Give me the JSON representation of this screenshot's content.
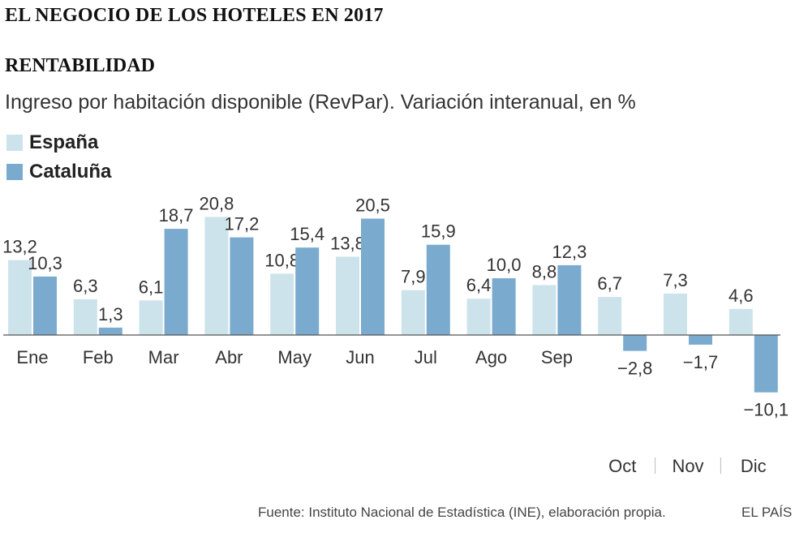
{
  "header": {
    "title": "EL NEGOCIO DE LOS HOTELES EN 2017",
    "section": "RENTABILIDAD",
    "subtitle": "Ingreso por habitación disponible (RevPar). Variación interanual, en %"
  },
  "colors": {
    "espana": "#cde3ec",
    "cataluna": "#7aabcf",
    "axis": "#555555"
  },
  "chart_data": {
    "type": "bar",
    "categories": [
      "Ene",
      "Feb",
      "Mar",
      "Abr",
      "May",
      "Jun",
      "Jul",
      "Ago",
      "Sep",
      "Oct",
      "Nov",
      "Dic"
    ],
    "series": [
      {
        "name": "España",
        "values": [
          13.2,
          6.3,
          6.1,
          20.8,
          10.8,
          13.8,
          7.9,
          6.4,
          8.8,
          6.7,
          7.3,
          4.6
        ],
        "labels": [
          "13,2",
          "6,3",
          "6,1",
          "20,8",
          "10,8",
          "13,8",
          "7,9",
          "6,4",
          "8,8",
          "6,7",
          "7,3",
          "4,6"
        ]
      },
      {
        "name": "Cataluña",
        "values": [
          10.3,
          1.3,
          18.7,
          17.2,
          15.4,
          20.5,
          15.9,
          10.0,
          12.3,
          -2.8,
          -1.7,
          -10.1
        ],
        "labels": [
          "10,3",
          "1,3",
          "18,7",
          "17,2",
          "15,4",
          "20,5",
          "15,9",
          "10,0",
          "12,3",
          "−2,8",
          "−1,7",
          "−10,1"
        ]
      }
    ],
    "legend": "top-left",
    "grid": false
  },
  "footer": {
    "source": "Fuente: Instituto Nacional de Estadística (INE), elaboración propia.",
    "brand": "EL PAÍS"
  }
}
